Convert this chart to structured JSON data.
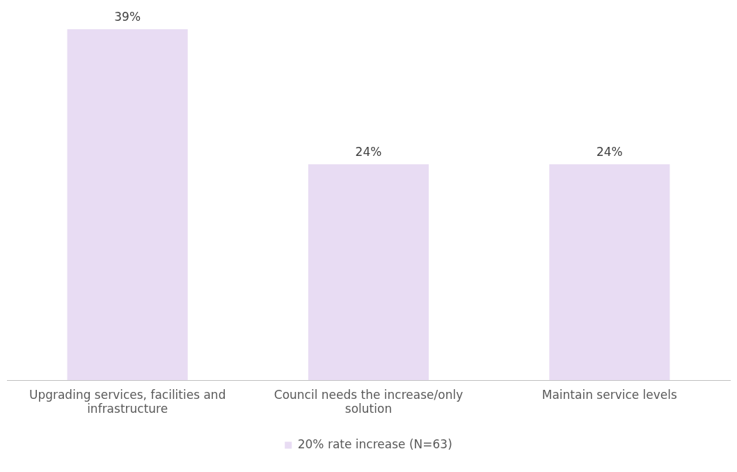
{
  "chart_data": {
    "type": "bar",
    "categories": [
      "Upgrading services, facilities and infrastructure",
      "Council needs the increase/only solution",
      "Maintain service levels"
    ],
    "series": [
      {
        "name": "20% rate increase (N=63)",
        "color": "#e8dcf3",
        "values": [
          39,
          24,
          24
        ],
        "value_labels": [
          "39%",
          "24%",
          "24%"
        ]
      }
    ],
    "legend": "bottom",
    "grid": false
  }
}
